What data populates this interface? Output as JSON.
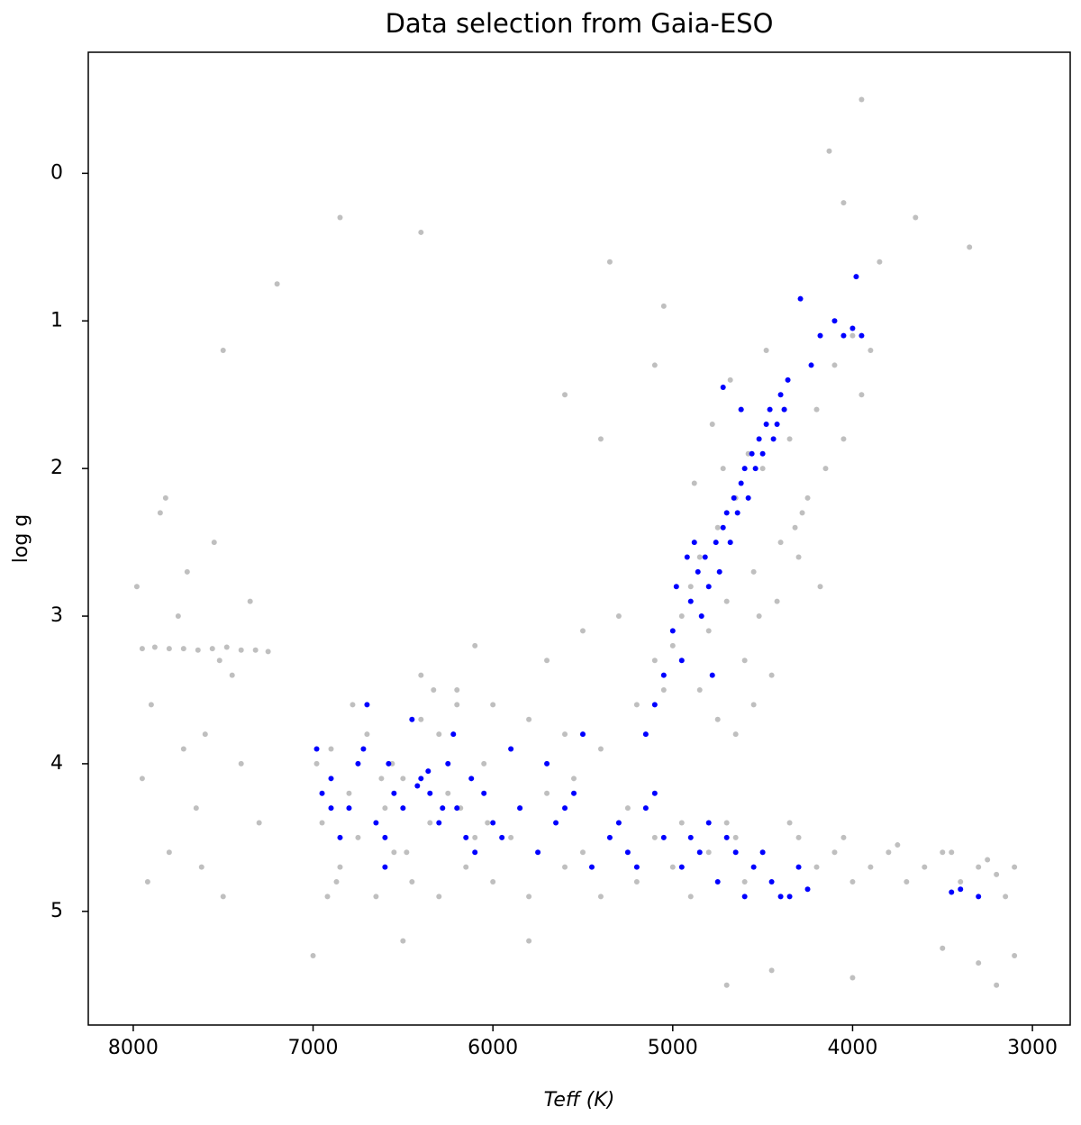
{
  "chart_data": {
    "type": "scatter",
    "title": "Data selection from Gaia-ESO",
    "xlabel": "Teff (K)",
    "ylabel": "log g",
    "xlim": [
      8250,
      2790
    ],
    "ylim": [
      5.77,
      -0.82
    ],
    "xticks": [
      8000,
      7000,
      6000,
      5000,
      4000,
      3000
    ],
    "yticks": [
      0,
      1,
      2,
      3,
      4,
      5
    ],
    "series": [
      {
        "color": "#808080",
        "x": [
          7980,
          7950,
          7900,
          7850,
          7800,
          7750,
          7700,
          7650,
          7600,
          7550,
          7500,
          7450,
          7400,
          7350,
          7300,
          7920,
          7820,
          7720,
          7620,
          7520,
          7950,
          7880,
          7800,
          7720,
          7640,
          7560,
          7480,
          7400,
          7320,
          7250,
          6980,
          6950,
          6900,
          6850,
          6800,
          6750,
          6700,
          6650,
          6600,
          6550,
          6500,
          6450,
          6400,
          6350,
          6300,
          6250,
          6200,
          6150,
          6100,
          6050,
          6000,
          6920,
          6780,
          6620,
          6480,
          6330,
          6180,
          6030,
          6870,
          6560,
          5900,
          5800,
          5700,
          5600,
          5500,
          5400,
          5300,
          5200,
          5100,
          5000,
          4900,
          4800,
          4700,
          4600,
          4500,
          4400,
          4300,
          4200,
          4100,
          4000,
          3900,
          3800,
          3700,
          3600,
          3500,
          3400,
          3300,
          3200,
          3150,
          3100,
          5850,
          5550,
          5250,
          4950,
          4650,
          4350,
          4050,
          3750,
          3450,
          3250,
          6400,
          6200,
          6000,
          5800,
          5600,
          5400,
          5200,
          5100,
          6100,
          5700,
          5500,
          5300,
          6300,
          5900,
          5050,
          5000,
          4950,
          4900,
          4850,
          4800,
          4750,
          4700,
          4650,
          4600,
          4550,
          4500,
          4450,
          4400,
          4350,
          4300,
          4250,
          4200,
          4150,
          4100,
          4050,
          4000,
          3950,
          3900,
          4880,
          4780,
          4680,
          4580,
          4480,
          4380,
          4280,
          4180,
          4720,
          4620,
          4520,
          4420,
          4320,
          4850,
          4750,
          4650,
          4550,
          3950,
          4130,
          4050,
          3650,
          3350,
          3850,
          5050,
          5350,
          6850,
          6400,
          7200,
          7500,
          5600,
          4450,
          3300,
          3100,
          3200,
          4000,
          5800,
          7000,
          6500,
          4700,
          3500,
          5100,
          5400
        ],
        "values": [
          2.8,
          4.1,
          3.6,
          2.3,
          4.6,
          3.0,
          2.7,
          4.3,
          3.8,
          2.5,
          4.9,
          3.4,
          4.0,
          2.9,
          4.4,
          4.8,
          2.2,
          3.9,
          4.7,
          3.3,
          3.22,
          3.21,
          3.22,
          3.22,
          3.23,
          3.22,
          3.21,
          3.23,
          3.23,
          3.24,
          4.0,
          4.4,
          3.9,
          4.7,
          4.2,
          4.5,
          3.8,
          4.9,
          4.3,
          4.6,
          4.1,
          4.8,
          3.7,
          4.4,
          4.9,
          4.2,
          3.6,
          4.7,
          4.5,
          4.0,
          4.8,
          4.9,
          3.6,
          4.1,
          4.6,
          3.5,
          4.3,
          4.4,
          4.8,
          4.0,
          4.5,
          4.9,
          4.2,
          4.7,
          4.6,
          4.9,
          4.4,
          4.8,
          4.5,
          4.7,
          4.9,
          4.6,
          4.4,
          4.8,
          4.6,
          4.9,
          4.5,
          4.7,
          4.6,
          4.8,
          4.7,
          4.6,
          4.8,
          4.7,
          4.6,
          4.8,
          4.7,
          4.75,
          4.9,
          4.7,
          4.3,
          4.1,
          4.3,
          4.4,
          4.5,
          4.4,
          4.5,
          4.55,
          4.6,
          4.65,
          3.4,
          3.5,
          3.6,
          3.7,
          3.8,
          3.9,
          3.6,
          3.3,
          3.2,
          3.3,
          3.1,
          3.0,
          3.8,
          3.9,
          3.5,
          3.2,
          3.0,
          2.8,
          2.6,
          3.1,
          2.4,
          2.9,
          2.2,
          3.3,
          2.7,
          2.0,
          3.4,
          2.5,
          1.8,
          2.6,
          2.2,
          1.6,
          2.0,
          1.3,
          1.8,
          1.1,
          1.5,
          1.2,
          2.1,
          1.7,
          1.4,
          1.9,
          1.2,
          1.6,
          2.3,
          2.8,
          2.0,
          1.6,
          3.0,
          2.9,
          2.4,
          3.5,
          3.7,
          3.8,
          3.6,
          -0.5,
          -0.15,
          0.2,
          0.3,
          0.5,
          0.6,
          0.9,
          0.6,
          0.3,
          0.4,
          0.75,
          1.2,
          1.5,
          5.4,
          5.35,
          5.3,
          5.5,
          5.45,
          5.2,
          5.3,
          5.2,
          5.5,
          5.25,
          1.3,
          1.8
        ]
      },
      {
        "color": "#0000ff",
        "x": [
          6980,
          6950,
          6900,
          6850,
          6800,
          6750,
          6700,
          6650,
          6600,
          6550,
          6500,
          6450,
          6400,
          6350,
          6300,
          6250,
          6200,
          6150,
          6100,
          6050,
          6000,
          6720,
          6580,
          6420,
          6360,
          6280,
          6220,
          6120,
          6900,
          6600,
          5950,
          5850,
          5750,
          5650,
          5550,
          5450,
          5350,
          5250,
          5150,
          5050,
          4950,
          4850,
          4750,
          4650,
          4550,
          4450,
          4350,
          4300,
          4250,
          5900,
          5700,
          5500,
          5300,
          5100,
          4900,
          4700,
          4500,
          4400,
          4600,
          4800,
          3450,
          3400,
          3300,
          5600,
          5200,
          5050,
          5000,
          4980,
          4950,
          4920,
          4900,
          4880,
          4860,
          4840,
          4820,
          4800,
          4780,
          4760,
          4740,
          4720,
          4700,
          4680,
          4660,
          4640,
          4620,
          4600,
          4580,
          4560,
          4540,
          4520,
          4500,
          4480,
          4460,
          4440,
          4420,
          4400,
          4380,
          4360,
          5100,
          5150,
          4290,
          4100,
          4050,
          4000,
          3980,
          3950,
          4230,
          4180,
          4720,
          4620
        ],
        "values": [
          3.9,
          4.2,
          4.1,
          4.5,
          4.3,
          4.0,
          3.6,
          4.4,
          4.7,
          4.2,
          4.3,
          3.7,
          4.1,
          4.2,
          4.4,
          4.0,
          4.3,
          4.5,
          4.6,
          4.2,
          4.4,
          3.9,
          4.0,
          4.15,
          4.05,
          4.3,
          3.8,
          4.1,
          4.3,
          4.5,
          4.5,
          4.3,
          4.6,
          4.4,
          4.2,
          4.7,
          4.5,
          4.6,
          4.3,
          4.5,
          4.7,
          4.6,
          4.8,
          4.6,
          4.7,
          4.8,
          4.9,
          4.7,
          4.85,
          3.9,
          4.0,
          3.8,
          4.4,
          4.2,
          4.5,
          4.5,
          4.6,
          4.9,
          4.9,
          4.4,
          4.87,
          4.85,
          4.9,
          4.3,
          4.7,
          3.4,
          3.1,
          2.8,
          3.3,
          2.6,
          2.9,
          2.5,
          2.7,
          3.0,
          2.6,
          2.8,
          3.4,
          2.5,
          2.7,
          2.4,
          2.3,
          2.5,
          2.2,
          2.3,
          2.1,
          2.0,
          2.2,
          1.9,
          2.0,
          1.8,
          1.9,
          1.7,
          1.6,
          1.8,
          1.7,
          1.5,
          1.6,
          1.4,
          3.6,
          3.8,
          0.85,
          1.0,
          1.1,
          1.05,
          0.7,
          1.1,
          1.3,
          1.1,
          1.45,
          1.6
        ]
      }
    ]
  }
}
